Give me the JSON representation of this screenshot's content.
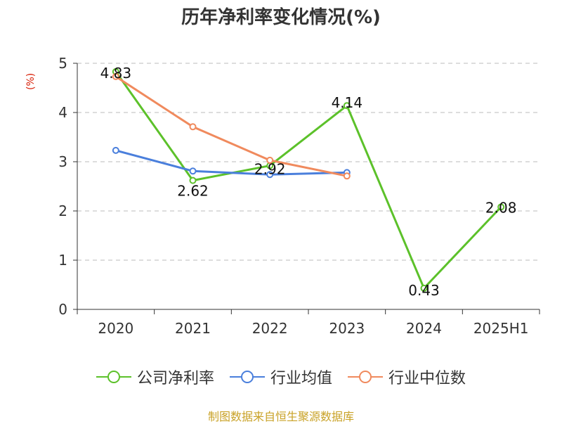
{
  "chart_data": {
    "type": "line",
    "title": "历年净利率变化情况(%)",
    "ylabel": "(%)",
    "categories": [
      "2020",
      "2021",
      "2022",
      "2023",
      "2024",
      "2025H1"
    ],
    "ylim": [
      0,
      5
    ],
    "yticks": [
      "0",
      "1",
      "2",
      "3",
      "4",
      "5"
    ],
    "grid": "horizontal-dashed",
    "legend_position": "bottom",
    "series": [
      {
        "name": "公司净利率",
        "color": "#5cc12a",
        "values": [
          4.83,
          2.62,
          2.92,
          4.14,
          0.43,
          2.08
        ],
        "labels": [
          "4.83",
          "2.62",
          "2.92",
          "4.14",
          "0.43",
          "2.08"
        ]
      },
      {
        "name": "行业均值",
        "color": "#4a7fdc",
        "values": [
          3.23,
          2.81,
          2.74,
          2.78,
          null,
          null
        ]
      },
      {
        "name": "行业中位数",
        "color": "#f08a5d",
        "values": [
          4.73,
          3.71,
          3.03,
          2.71,
          null,
          null
        ]
      }
    ]
  },
  "footer": {
    "source": "制图数据来自恒生聚源数据库"
  }
}
